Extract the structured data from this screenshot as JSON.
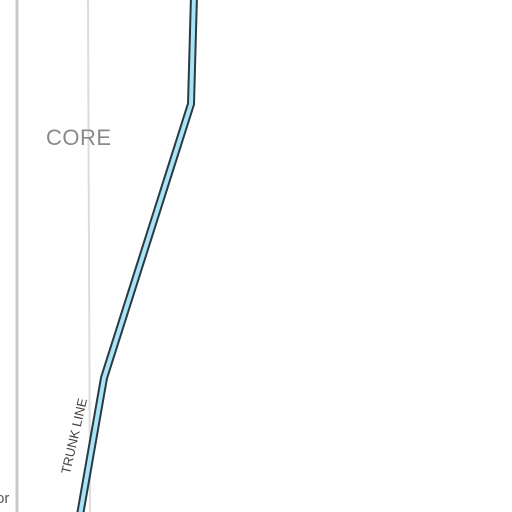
{
  "map": {
    "area_label": "CORE",
    "route_label": "TRUNK LINE",
    "road_label": "or",
    "colors": {
      "background": "#ffffff",
      "route_fill": "#a8e4f5",
      "route_casing": "#2b3a42",
      "road_light": "#d9d9d9",
      "road_medium": "#c8c8c8",
      "area_label": "#8a8a8a"
    }
  }
}
